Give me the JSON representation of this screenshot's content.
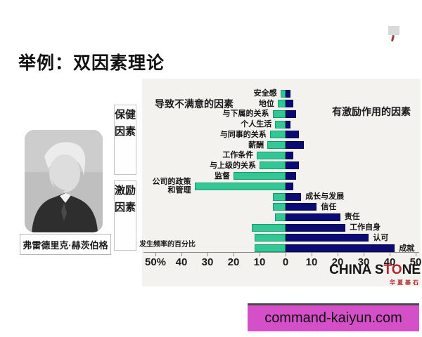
{
  "slide": {
    "title": "举例：双因素理论",
    "person": {
      "name": "弗雷德里克·赫茨伯格"
    },
    "side_labels": [
      {
        "label": "保健因素"
      },
      {
        "label": "激励因素"
      }
    ]
  },
  "chart_data": {
    "type": "bar",
    "left_header": "导致不满意的因素",
    "right_header": "有激励作用的因素",
    "axis_label": "发生频率的百分比",
    "x_ticks": [
      "50%",
      "40",
      "30",
      "20",
      "10",
      "0",
      "10",
      "20",
      "30",
      "40",
      "50"
    ],
    "xlim": [
      -50,
      50
    ],
    "grid": false,
    "colors": {
      "hygiene_bar": "#33c796",
      "motivator_bar": "#0b0b78"
    },
    "series_note": "left=dissatisfaction frequency %, right=motivation frequency %",
    "rows": [
      {
        "label": "安全感",
        "left": 2,
        "right": 2,
        "label_side": "left"
      },
      {
        "label": "地位",
        "left": 3,
        "right": 3,
        "label_side": "left"
      },
      {
        "label": "与下属的关系",
        "left": 5,
        "right": 4,
        "label_side": "left"
      },
      {
        "label": "个人生活",
        "left": 4,
        "right": 2,
        "label_side": "left"
      },
      {
        "label": "与同事的关系",
        "left": 6,
        "right": 5,
        "label_side": "left"
      },
      {
        "label": "薪酬",
        "left": 7,
        "right": 7,
        "label_side": "left"
      },
      {
        "label": "工作条件",
        "left": 11,
        "right": 3,
        "label_side": "left"
      },
      {
        "label": "与上级的关系",
        "left": 10,
        "right": 5,
        "label_side": "left"
      },
      {
        "label": "监督",
        "left": 20,
        "right": 4,
        "label_side": "left"
      },
      {
        "label": "公司的政策和管理",
        "label_lines": [
          "公司的政策",
          "和管理"
        ],
        "left": 35,
        "right": 3,
        "label_side": "left"
      },
      {
        "label": "成长与发展",
        "left": 5,
        "right": 6,
        "label_side": "right"
      },
      {
        "label": "信任",
        "left": 5,
        "right": 12,
        "label_side": "right"
      },
      {
        "label": "责任",
        "left": 4,
        "right": 21,
        "label_side": "right"
      },
      {
        "label": "工作自身",
        "left": 13,
        "right": 23,
        "label_side": "right"
      },
      {
        "label": "认可",
        "left": 12,
        "right": 32,
        "label_side": "right"
      },
      {
        "label": "成就",
        "left": 12,
        "right": 42,
        "label_side": "right"
      }
    ]
  },
  "watermark": {
    "brand_prefix": "CHINA S",
    "brand_red": "TO",
    "brand_suffix": "NE",
    "brand_sub": "华夏基石"
  },
  "banner": {
    "text": "command-kaiyun.com",
    "bg": "#d44fc8"
  }
}
